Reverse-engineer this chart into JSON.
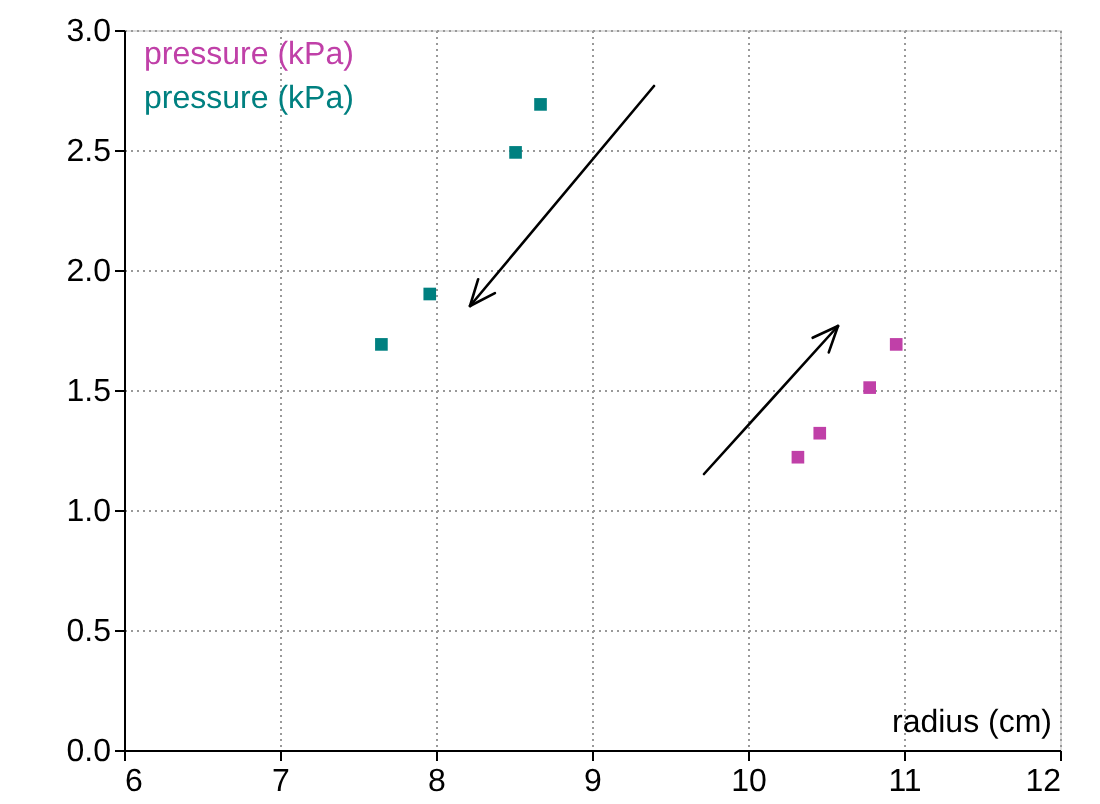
{
  "chart_data": {
    "type": "scatter",
    "xlabel": "radius (cm)",
    "series": [
      {
        "name": "pressure (kPa)",
        "color": "#c040a8",
        "x": [
          10.32,
          10.46,
          10.78,
          10.95
        ],
        "values": [
          1.22,
          1.32,
          1.51,
          1.69
        ]
      },
      {
        "name": "pressure (kPa)",
        "color": "#008080",
        "x": [
          7.65,
          7.96,
          8.51,
          8.67
        ],
        "values": [
          1.69,
          1.9,
          2.49,
          2.69
        ]
      }
    ],
    "xlim": [
      6,
      12
    ],
    "xticks": [
      6,
      7,
      8,
      9,
      10,
      11,
      12
    ],
    "ylim": [
      0,
      3
    ],
    "yticks": [
      {
        "value": 0,
        "label": "0.0"
      },
      0.5,
      {
        "value": 1,
        "label": "1.0"
      },
      1.5,
      {
        "value": 2,
        "label": "2.0"
      },
      2.5,
      {
        "value": 3,
        "label": "3.0"
      }
    ],
    "grid": true,
    "legend": "top left",
    "marker": "square"
  }
}
